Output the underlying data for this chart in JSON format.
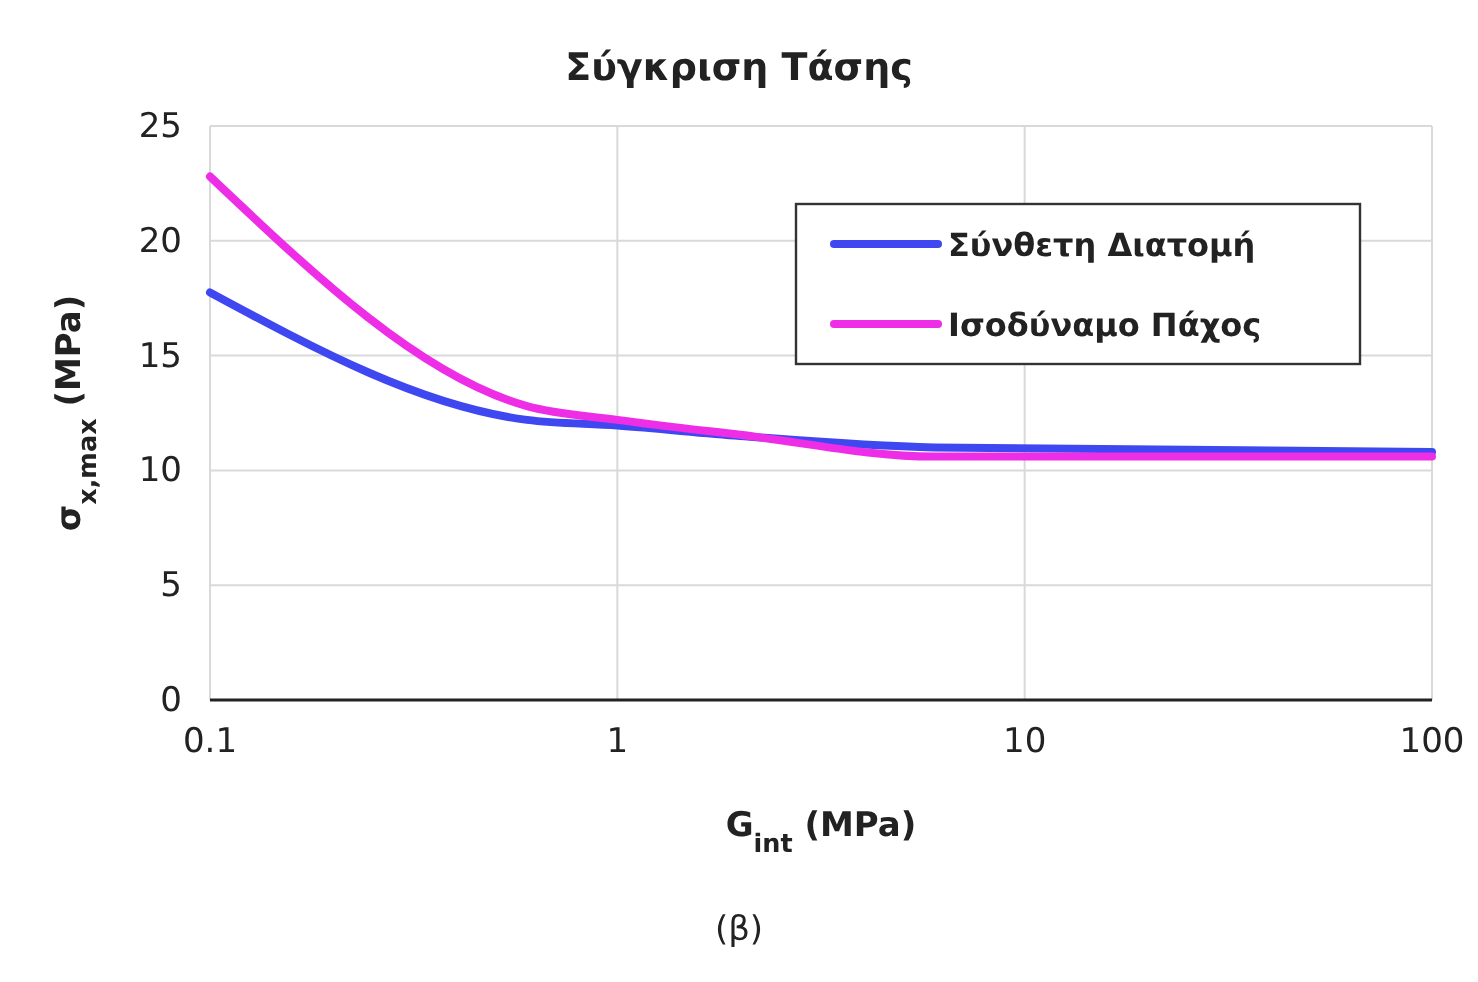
{
  "chart_data": {
    "type": "line",
    "title": "Σύγκριση Τάσης",
    "xlabel": "G$_{int}$ (MPa)",
    "ylabel": "σ$_{x,max}$ (MPa)",
    "log": "x",
    "xlim": [
      0.1,
      100
    ],
    "xticks": [
      0.1,
      1,
      10,
      100
    ],
    "ylim": [
      0,
      25
    ],
    "yticks": [
      0,
      5,
      10,
      15,
      20,
      25
    ],
    "grid": true,
    "legend": "top right",
    "marker": "none",
    "line_style": "solid",
    "annotations": [
      "(β)"
    ],
    "series": [
      {
        "name": "Σύνθετη Διατομή",
        "color": "#3f48f0",
        "x": [
          0.1,
          0.6,
          1,
          2,
          6,
          100
        ],
        "values": [
          17.75,
          12.2,
          11.95,
          11.5,
          11.0,
          10.8
        ]
      },
      {
        "name": "Ισοδύναμο Πάχος",
        "color": "#ee2ee6",
        "x": [
          0.1,
          0.6,
          1,
          2,
          6,
          100
        ],
        "values": [
          22.8,
          12.8,
          12.2,
          11.55,
          10.6,
          10.6
        ]
      }
    ]
  }
}
